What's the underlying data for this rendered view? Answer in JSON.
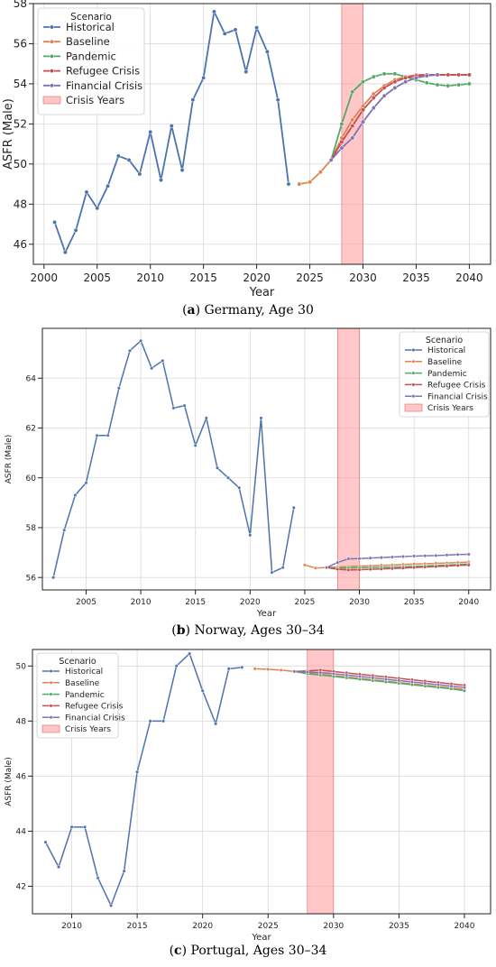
{
  "colors": {
    "Historical": "#4c72b0",
    "Baseline": "#dd8452",
    "Pandemic": "#55a868",
    "Refugee Crisis": "#c44e52",
    "Financial Crisis": "#8172b3",
    "Crisis Years": "#ff9999"
  },
  "chart_data": [
    {
      "type": "line",
      "caption_letter": "(a)",
      "caption_text": "Germany, Age 30",
      "xlabel": "Year",
      "ylabel": "ASFR (Male)",
      "xlim": [
        1999,
        2042
      ],
      "ylim": [
        45,
        58
      ],
      "xticks": [
        2000,
        2005,
        2010,
        2015,
        2020,
        2025,
        2030,
        2035,
        2040
      ],
      "yticks": [
        46,
        48,
        50,
        52,
        54,
        56,
        58
      ],
      "grid": true,
      "legend_title": "Scenario",
      "legend_position": "top-left",
      "crisis_years": [
        2028,
        2030
      ],
      "series": [
        {
          "name": "Historical",
          "x": [
            2001,
            2002,
            2003,
            2004,
            2005,
            2006,
            2007,
            2008,
            2009,
            2010,
            2011,
            2012,
            2013,
            2014,
            2015,
            2016,
            2017,
            2018,
            2019,
            2020,
            2021,
            2022,
            2023
          ],
          "y": [
            47.1,
            45.6,
            46.7,
            48.6,
            47.8,
            48.9,
            50.4,
            50.2,
            49.5,
            51.6,
            49.2,
            51.9,
            49.7,
            53.2,
            54.3,
            57.6,
            56.5,
            56.7,
            54.6,
            56.8,
            55.6,
            53.2,
            49.0
          ]
        },
        {
          "name": "Baseline",
          "x": [
            2024,
            2025,
            2026,
            2027,
            2028,
            2029,
            2030,
            2031,
            2032,
            2033,
            2034,
            2035,
            2036,
            2037,
            2038,
            2039,
            2040
          ],
          "y": [
            49.0,
            49.1,
            49.6,
            50.2,
            51.3,
            52.2,
            52.9,
            53.5,
            53.9,
            54.2,
            54.35,
            54.45,
            54.45,
            54.45,
            54.45,
            54.45,
            54.45
          ]
        },
        {
          "name": "Pandemic",
          "x": [
            2027,
            2028,
            2029,
            2030,
            2031,
            2032,
            2033,
            2034,
            2035,
            2036,
            2037,
            2038,
            2039,
            2040
          ],
          "y": [
            50.2,
            52.0,
            53.6,
            54.1,
            54.35,
            54.5,
            54.5,
            54.35,
            54.2,
            54.05,
            53.95,
            53.9,
            53.95,
            54.0
          ]
        },
        {
          "name": "Refugee Crisis",
          "x": [
            2027,
            2028,
            2029,
            2030,
            2031,
            2032,
            2033,
            2034,
            2035,
            2036,
            2037,
            2038,
            2039,
            2040
          ],
          "y": [
            50.2,
            51.1,
            51.9,
            52.7,
            53.3,
            53.8,
            54.1,
            54.3,
            54.4,
            54.45,
            54.45,
            54.45,
            54.45,
            54.45
          ]
        },
        {
          "name": "Financial Crisis",
          "x": [
            2027,
            2028,
            2029,
            2030,
            2031,
            2032,
            2033,
            2034,
            2035,
            2036,
            2037
          ],
          "y": [
            50.2,
            50.8,
            51.3,
            52.1,
            52.8,
            53.4,
            53.8,
            54.1,
            54.3,
            54.4,
            54.45
          ]
        }
      ]
    },
    {
      "type": "line",
      "caption_letter": "(b)",
      "caption_text": "Norway, Ages 30–34",
      "xlabel": "Year",
      "ylabel": "ASFR (Male)",
      "xlim": [
        2001,
        2042
      ],
      "ylim": [
        55.5,
        66
      ],
      "xticks": [
        2005,
        2010,
        2015,
        2020,
        2025,
        2030,
        2035,
        2040
      ],
      "yticks": [
        56,
        58,
        60,
        62,
        64
      ],
      "grid": true,
      "legend_title": "Scenario",
      "legend_position": "top-right",
      "crisis_years": [
        2028,
        2030
      ],
      "series": [
        {
          "name": "Historical",
          "x": [
            2002,
            2003,
            2004,
            2005,
            2006,
            2007,
            2008,
            2009,
            2010,
            2011,
            2012,
            2013,
            2014,
            2015,
            2016,
            2017,
            2018,
            2019,
            2020,
            2021,
            2022,
            2023,
            2024
          ],
          "y": [
            56.0,
            57.9,
            59.3,
            59.8,
            61.7,
            61.7,
            63.6,
            65.1,
            65.5,
            64.4,
            64.7,
            62.8,
            62.9,
            61.3,
            62.4,
            60.4,
            60.0,
            59.6,
            57.7,
            62.4,
            56.2,
            56.4,
            58.8
          ]
        },
        {
          "name": "Baseline",
          "x": [
            2025,
            2026,
            2027,
            2028,
            2029,
            2030,
            2031,
            2032,
            2033,
            2034,
            2035,
            2036,
            2037,
            2038,
            2039,
            2040
          ],
          "y": [
            56.5,
            56.38,
            56.4,
            56.42,
            56.44,
            56.46,
            56.47,
            56.49,
            56.5,
            56.52,
            56.54,
            56.55,
            56.57,
            56.58,
            56.6,
            56.62
          ]
        },
        {
          "name": "Pandemic",
          "x": [
            2027,
            2028,
            2029,
            2030,
            2031,
            2032,
            2033,
            2034,
            2035,
            2036,
            2037,
            2038,
            2039,
            2040
          ],
          "y": [
            56.4,
            56.38,
            56.38,
            56.39,
            56.4,
            56.41,
            56.42,
            56.43,
            56.45,
            56.46,
            56.48,
            56.5,
            56.52,
            56.54
          ]
        },
        {
          "name": "Refugee Crisis",
          "x": [
            2027,
            2028,
            2029,
            2030,
            2031,
            2032,
            2033,
            2034,
            2035,
            2036,
            2037,
            2038,
            2039,
            2040
          ],
          "y": [
            56.4,
            56.33,
            56.3,
            56.31,
            56.33,
            56.34,
            56.36,
            56.38,
            56.4,
            56.42,
            56.44,
            56.46,
            56.48,
            56.5
          ]
        },
        {
          "name": "Financial Crisis",
          "x": [
            2027,
            2028,
            2029,
            2030,
            2031,
            2032,
            2033,
            2034,
            2035,
            2036,
            2037,
            2038,
            2039,
            2040
          ],
          "y": [
            56.4,
            56.6,
            56.75,
            56.76,
            56.78,
            56.8,
            56.82,
            56.84,
            56.86,
            56.87,
            56.88,
            56.9,
            56.92,
            56.93
          ]
        }
      ]
    },
    {
      "type": "line",
      "caption_letter": "(c)",
      "caption_text": "Portugal, Ages 30–34",
      "xlabel": "Year",
      "ylabel": "ASFR (Male)",
      "xlim": [
        2007,
        2042
      ],
      "ylim": [
        41,
        50.6
      ],
      "xticks": [
        2010,
        2015,
        2020,
        2025,
        2030,
        2035,
        2040
      ],
      "yticks": [
        42,
        44,
        46,
        48,
        50
      ],
      "grid": true,
      "legend_title": "Scenario",
      "legend_position": "top-left",
      "crisis_years": [
        2028,
        2030
      ],
      "series": [
        {
          "name": "Historical",
          "x": [
            2008,
            2009,
            2010,
            2011,
            2012,
            2013,
            2014,
            2015,
            2016,
            2017,
            2018,
            2019,
            2020,
            2021,
            2022,
            2023
          ],
          "y": [
            43.6,
            42.7,
            44.15,
            44.15,
            42.3,
            41.3,
            42.55,
            46.15,
            48.0,
            48.0,
            50.0,
            50.45,
            49.1,
            47.9,
            49.9,
            49.95
          ]
        },
        {
          "name": "Baseline",
          "x": [
            2024,
            2025,
            2026,
            2027,
            2028,
            2029,
            2030,
            2031,
            2032,
            2033,
            2034,
            2035,
            2036,
            2037,
            2038,
            2039,
            2040
          ],
          "y": [
            49.9,
            49.88,
            49.85,
            49.8,
            49.75,
            49.7,
            49.65,
            49.6,
            49.55,
            49.5,
            49.45,
            49.4,
            49.35,
            49.3,
            49.25,
            49.2,
            49.15
          ]
        },
        {
          "name": "Pandemic",
          "x": [
            2027,
            2028,
            2029,
            2030,
            2031,
            2032,
            2033,
            2034,
            2035,
            2036,
            2037,
            2038,
            2039,
            2040
          ],
          "y": [
            49.8,
            49.72,
            49.67,
            49.62,
            49.57,
            49.52,
            49.47,
            49.42,
            49.37,
            49.32,
            49.27,
            49.22,
            49.17,
            49.1
          ]
        },
        {
          "name": "Refugee Crisis",
          "x": [
            2027,
            2028,
            2029,
            2030,
            2031,
            2032,
            2033,
            2034,
            2035,
            2036,
            2037,
            2038,
            2039,
            2040
          ],
          "y": [
            49.8,
            49.82,
            49.85,
            49.8,
            49.75,
            49.7,
            49.65,
            49.6,
            49.55,
            49.5,
            49.45,
            49.4,
            49.35,
            49.3
          ]
        },
        {
          "name": "Financial Crisis",
          "x": [
            2027,
            2028,
            2029,
            2030,
            2031,
            2032,
            2033,
            2034,
            2035,
            2036,
            2037,
            2038,
            2039,
            2040
          ],
          "y": [
            49.8,
            49.78,
            49.76,
            49.72,
            49.67,
            49.62,
            49.57,
            49.52,
            49.47,
            49.42,
            49.37,
            49.32,
            49.27,
            49.22
          ]
        }
      ]
    }
  ]
}
